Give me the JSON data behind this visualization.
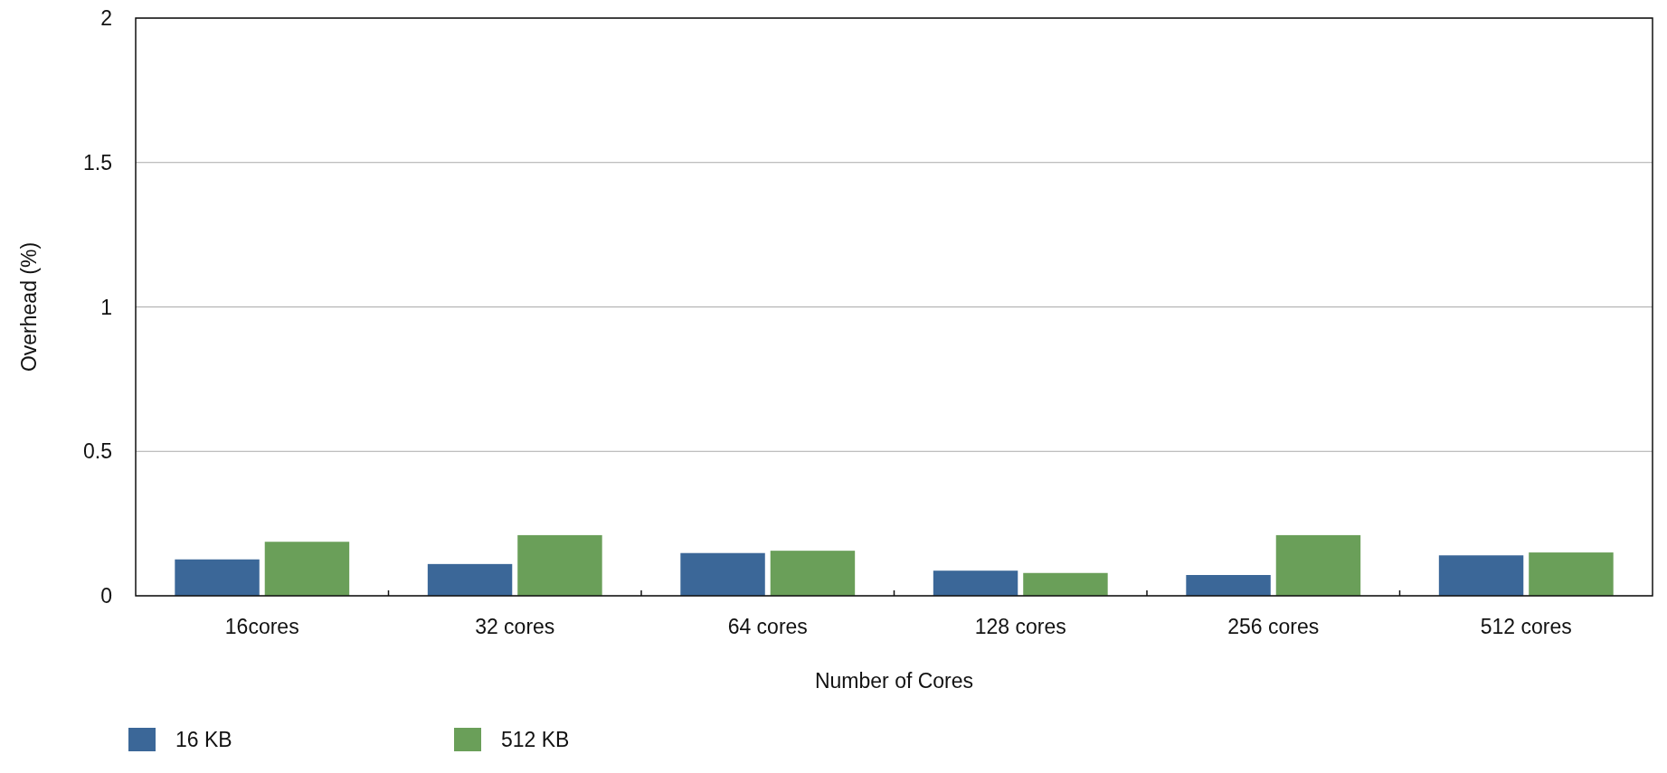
{
  "chart_data": {
    "type": "bar",
    "xlabel": "Number of Cores",
    "ylabel": "Overhead (%)",
    "categories": [
      "16cores",
      "32 cores",
      "64 cores",
      "128 cores",
      "256 cores",
      "512 cores"
    ],
    "series": [
      {
        "name": "16 KB",
        "color": "#3b6798",
        "values": [
          0.126,
          0.11,
          0.148,
          0.087,
          0.072,
          0.14
        ]
      },
      {
        "name": "512 KB",
        "color": "#6a9f59",
        "values": [
          0.187,
          0.21,
          0.156,
          0.079,
          0.21,
          0.15
        ]
      }
    ],
    "ylim": [
      0,
      2
    ],
    "yticks": [
      0,
      0.5,
      1,
      1.5,
      2
    ],
    "grid": "y",
    "legend": "bottom left"
  }
}
